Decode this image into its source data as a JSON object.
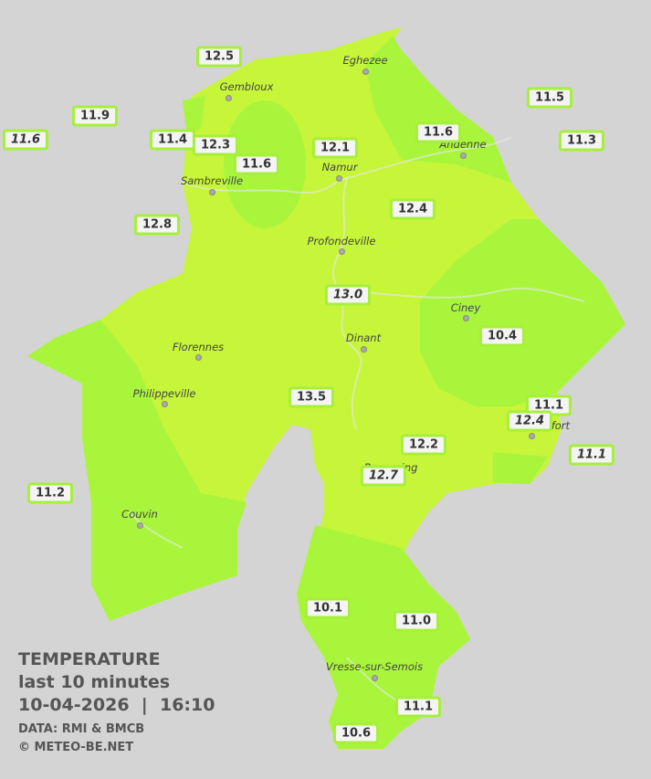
{
  "title": "TEMPERATURE",
  "subtitle": "last 10 minutes",
  "date": "10-04-2026",
  "separator": "|",
  "time": "16:10",
  "data_source": "DATA: RMI & BMCB",
  "copyright": "© METEO-BE.NET",
  "cities": [
    {
      "label": "Gembloux"
    },
    {
      "label": "Eghezee"
    },
    {
      "label": "Andenne"
    },
    {
      "label": "Namur"
    },
    {
      "label": "Sambreville"
    },
    {
      "label": "Profondeville"
    },
    {
      "label": "Ciney"
    },
    {
      "label": "Florennes"
    },
    {
      "label": "Dinant"
    },
    {
      "label": "Philippeville"
    },
    {
      "label": "Beauraing"
    },
    {
      "label": "Rochefort"
    },
    {
      "label": "Couvin"
    },
    {
      "label": "Vresse-sur-Semois"
    }
  ],
  "stations": [
    {
      "value": "12.5",
      "italic": false
    },
    {
      "value": "11.9",
      "italic": false
    },
    {
      "value": "11.6",
      "italic": true
    },
    {
      "value": "11.4",
      "italic": false
    },
    {
      "value": "12.3",
      "italic": false
    },
    {
      "value": "11.6",
      "italic": false
    },
    {
      "value": "12.1",
      "italic": false
    },
    {
      "value": "11.6",
      "italic": false
    },
    {
      "value": "11.5",
      "italic": false
    },
    {
      "value": "11.3",
      "italic": false
    },
    {
      "value": "12.8",
      "italic": false
    },
    {
      "value": "12.4",
      "italic": false
    },
    {
      "value": "13.0",
      "italic": true
    },
    {
      "value": "10.4",
      "italic": false
    },
    {
      "value": "13.5",
      "italic": false
    },
    {
      "value": "11.1",
      "italic": false
    },
    {
      "value": "12.4",
      "italic": true
    },
    {
      "value": "12.2",
      "italic": false
    },
    {
      "value": "11.1",
      "italic": true
    },
    {
      "value": "12.7",
      "italic": true
    },
    {
      "value": "11.2",
      "italic": false
    },
    {
      "value": "10.1",
      "italic": false
    },
    {
      "value": "11.0",
      "italic": false
    },
    {
      "value": "11.1",
      "italic": false
    },
    {
      "value": "10.6",
      "italic": false
    }
  ]
}
